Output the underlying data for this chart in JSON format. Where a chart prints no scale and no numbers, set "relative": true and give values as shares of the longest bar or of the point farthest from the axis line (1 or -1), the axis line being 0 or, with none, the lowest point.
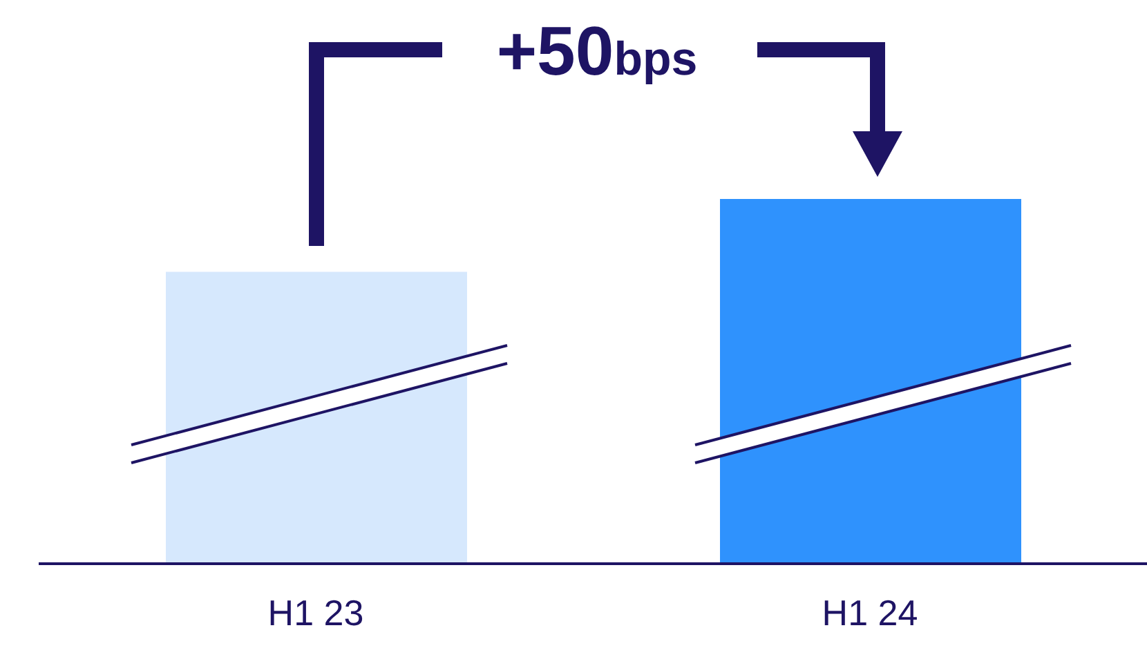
{
  "chart_data": {
    "type": "bar",
    "relative": true,
    "categories": [
      "H1 23",
      "H1 24"
    ],
    "values": [
      0.8,
      1
    ],
    "colors": [
      "#d6e8fd",
      "#2f92fd"
    ],
    "annotations": [
      "+50bps"
    ]
  }
}
